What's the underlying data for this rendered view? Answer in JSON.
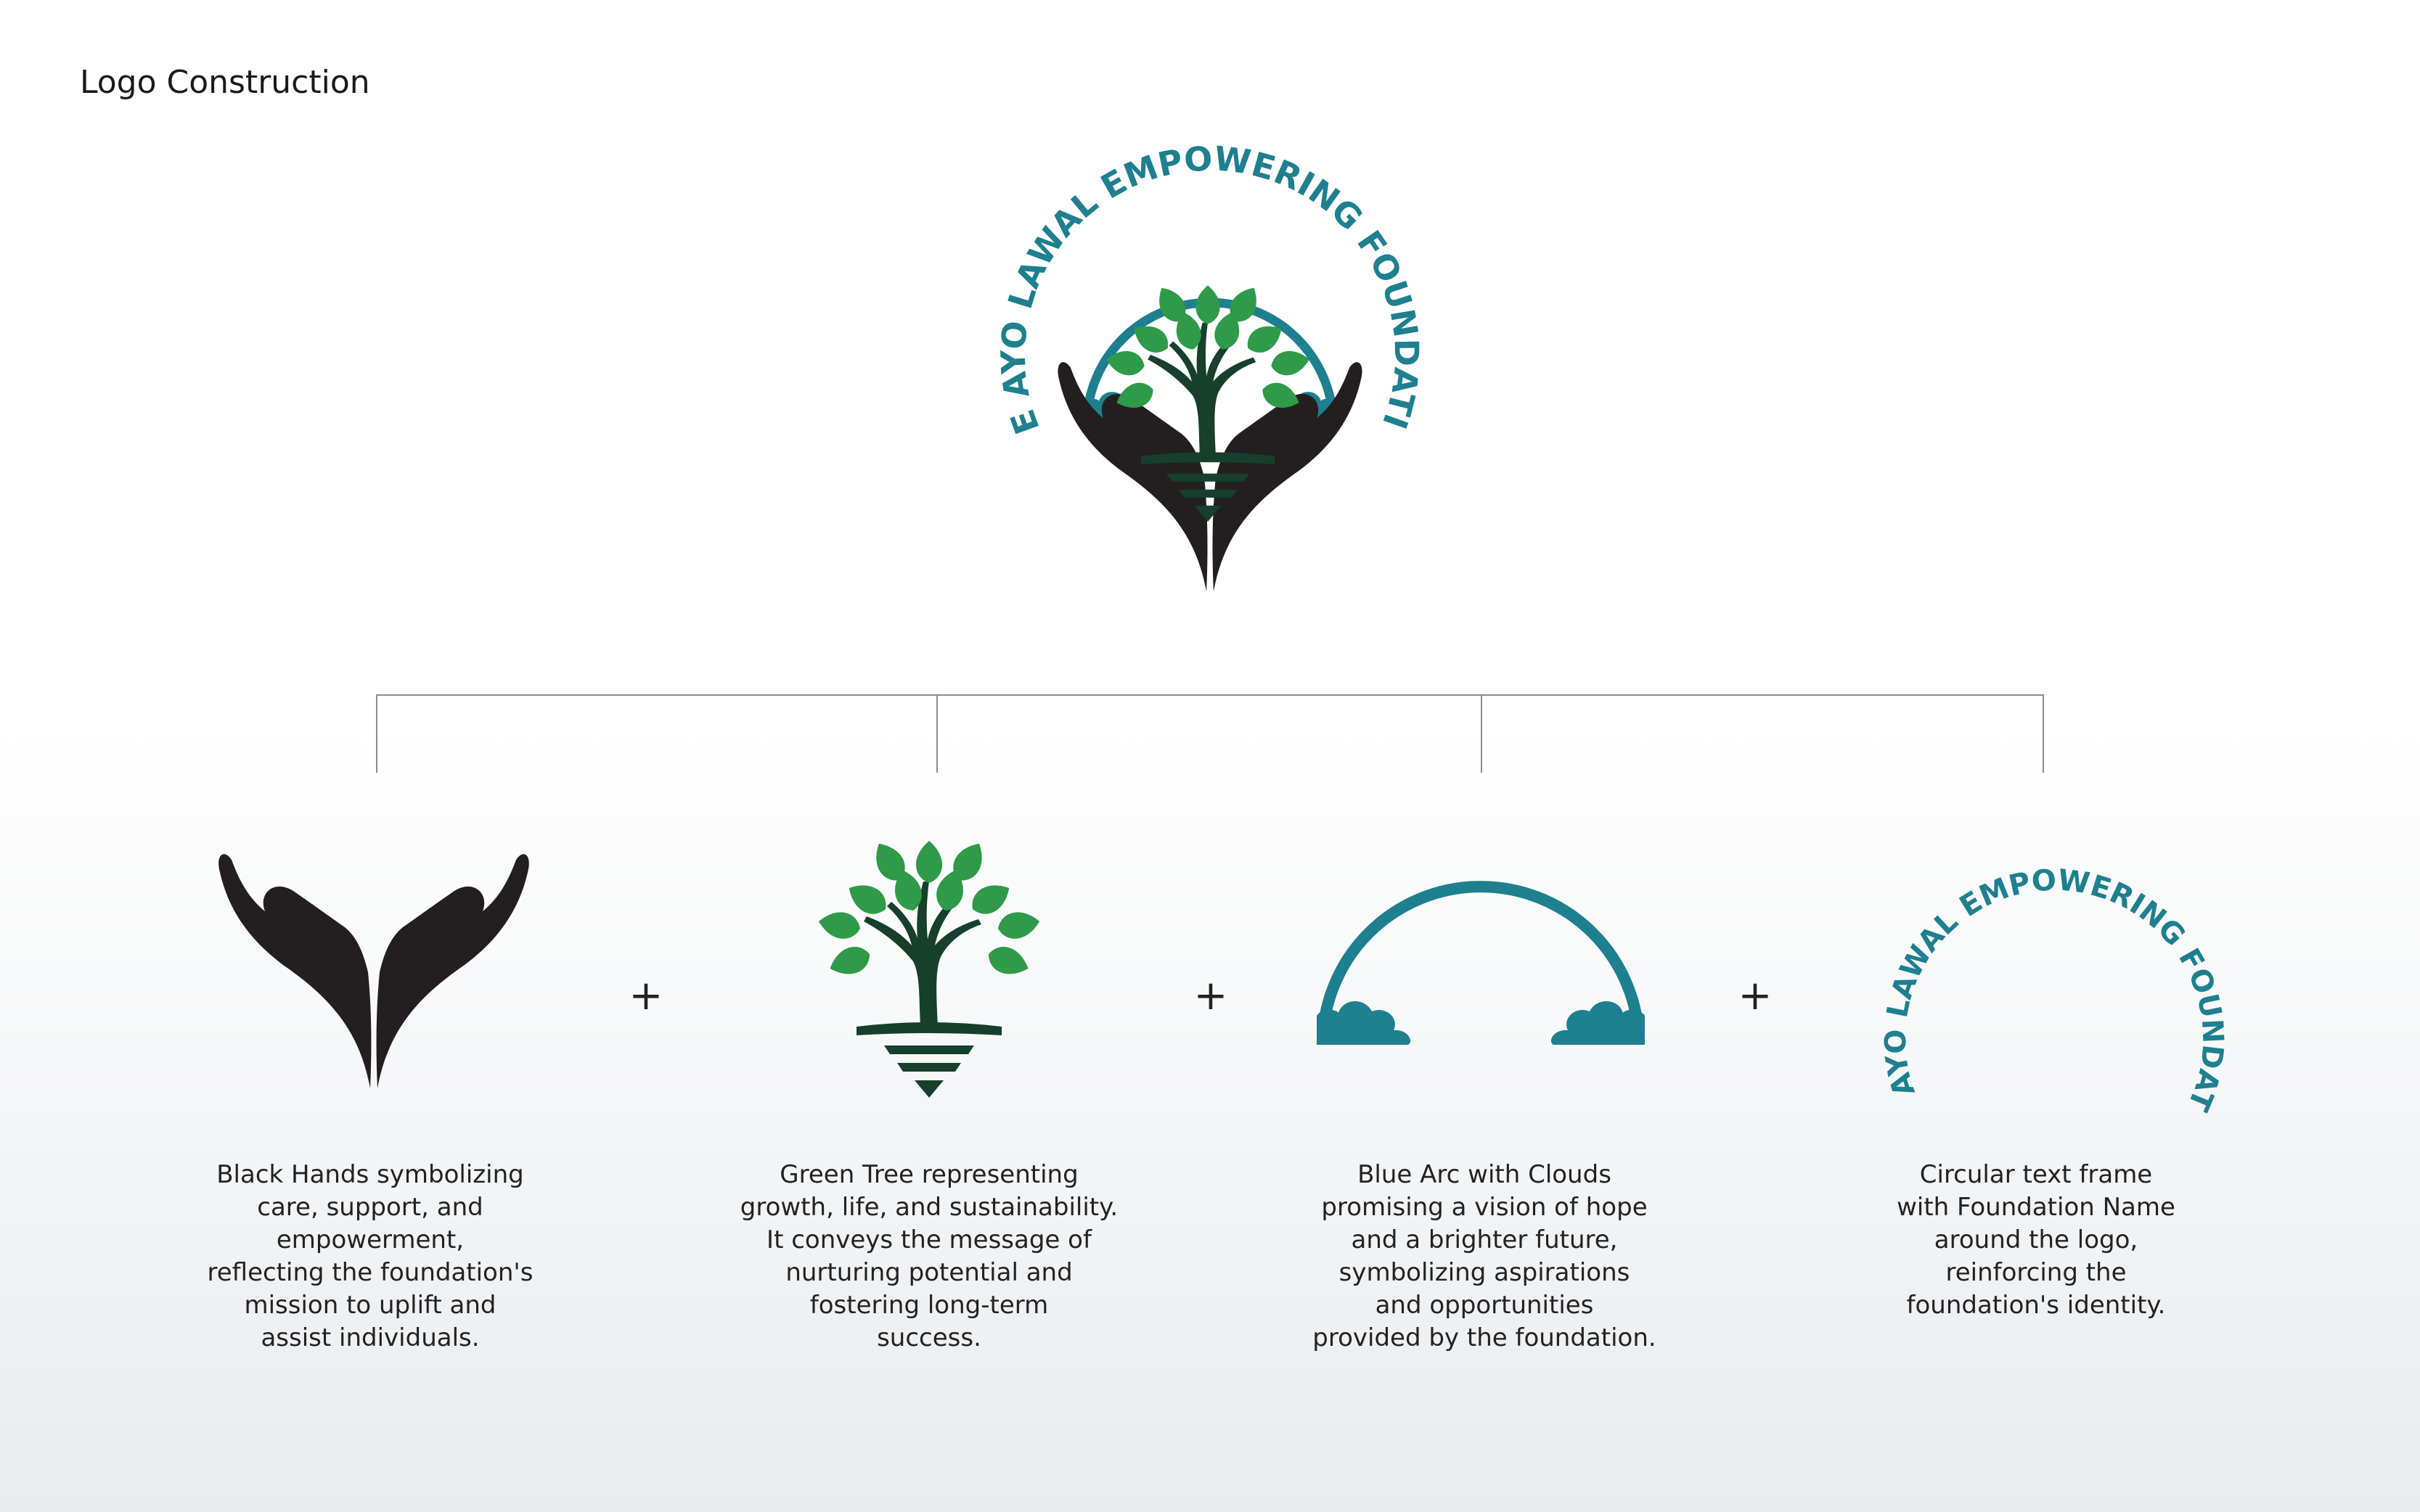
{
  "page": {
    "title": "Logo Construction"
  },
  "logo": {
    "ring_text": "THE AYO LAWAL EMPOWERING FOUNDATION"
  },
  "colors": {
    "teal": "#1e7f8f",
    "green": "#2f9a48",
    "dark_green": "#173f2c",
    "black": "#231f20"
  },
  "operators": [
    "+",
    "+",
    "+"
  ],
  "components": [
    {
      "icon": "hands-icon",
      "description": "Black Hands symbolizing\ncare, support, and\nempowerment,\nreflecting the foundation's\nmission to uplift and\nassist individuals."
    },
    {
      "icon": "tree-icon",
      "description": "Green Tree representing\ngrowth, life, and sustainability.\nIt conveys the message of\nnurturing potential and\nfostering long-term\nsuccess."
    },
    {
      "icon": "arc-clouds-icon",
      "description": "Blue Arc with Clouds\npromising a vision of hope\nand a brighter future,\nsymbolizing aspirations\nand opportunities\nprovided by the foundation."
    },
    {
      "icon": "circular-text-icon",
      "description": "Circular text frame\nwith Foundation Name\naround the logo,\nreinforcing the\nfoundation's identity."
    }
  ]
}
